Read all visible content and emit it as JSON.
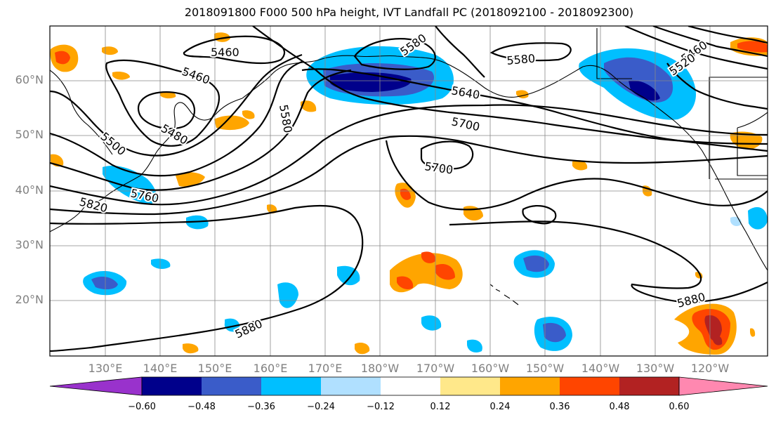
{
  "title": "2018091800 F000 500 hPa height, IVT Landfall PC (2018092100 - 2018092300)",
  "lat_labels": [
    "60°N",
    "50°N",
    "40°N",
    "30°N",
    "20°N"
  ],
  "lon_labels": [
    "130°E",
    "140°E",
    "150°E",
    "160°E",
    "170°E",
    "180°W",
    "170°W",
    "160°W",
    "150°W",
    "140°W",
    "130°W",
    "120°W"
  ],
  "contour_labels": [
    "5460",
    "5460",
    "5480",
    "5580",
    "5500",
    "5760",
    "5820",
    "5580",
    "5640",
    "5700",
    "5700",
    "5880",
    "5880",
    "5460",
    "5520",
    "5580"
  ],
  "colorbar": {
    "tick_labels": [
      "−0.60",
      "−0.48",
      "−0.36",
      "−0.24",
      "−0.12",
      "0.12",
      "0.24",
      "0.36",
      "0.48",
      "0.60"
    ],
    "colors": [
      "#9932cc",
      "#00008b",
      "#3a5cc9",
      "#00bfff",
      "#b0e0ff",
      "#ffffff",
      "#ffe88a",
      "#ffa500",
      "#ff4500",
      "#b22222",
      "#ff88b0"
    ]
  }
}
